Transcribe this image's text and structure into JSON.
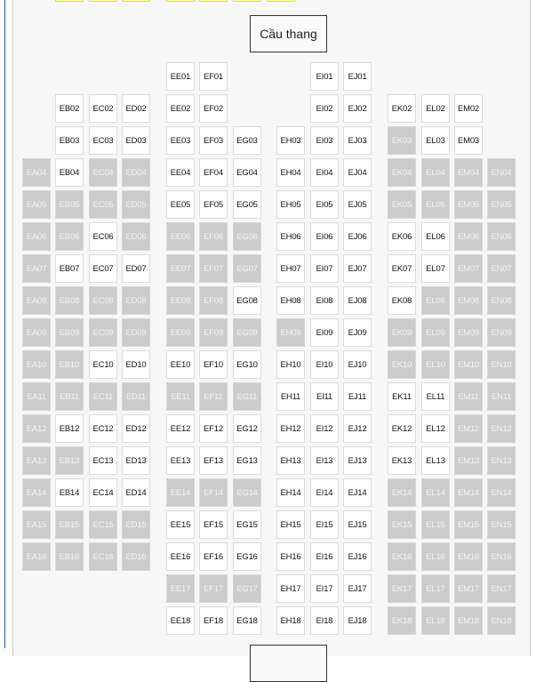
{
  "stair_label": "Cầu thang",
  "colors": {
    "available": "#ffffff",
    "sold": "#cccccc",
    "selected": "#ffff99",
    "accent": "#2a5ea8"
  },
  "status_key": {
    "a": "available",
    "s": "sold"
  },
  "rows": [
    {
      "EE01": "a",
      "EF01": "a",
      "EI01": "a",
      "EJ01": "a"
    },
    {
      "EB02": "a",
      "EC02": "a",
      "ED02": "a",
      "EE02": "a",
      "EF02": "a",
      "EI02": "a",
      "EJ02": "a",
      "EK02": "a",
      "EL02": "a",
      "EM02": "a"
    },
    {
      "EB03": "a",
      "EC03": "a",
      "ED03": "a",
      "EE03": "a",
      "EF03": "a",
      "EG03": "a",
      "EH03": "a",
      "EI03": "a",
      "EJ03": "a",
      "EK03": "s",
      "EL03": "a",
      "EM03": "a"
    },
    {
      "EA04": "s",
      "EB04": "a",
      "EC04": "s",
      "ED04": "s",
      "EE04": "a",
      "EF04": "a",
      "EG04": "a",
      "EH04": "a",
      "EI04": "a",
      "EJ04": "a",
      "EK04": "s",
      "EL04": "s",
      "EM04": "s",
      "EN04": "s"
    },
    {
      "EA05": "s",
      "EB05": "s",
      "EC05": "s",
      "ED05": "s",
      "EE05": "a",
      "EF05": "a",
      "EG05": "a",
      "EH05": "a",
      "EI05": "a",
      "EJ05": "a",
      "EK05": "s",
      "EL05": "s",
      "EM05": "s",
      "EN05": "s"
    },
    {
      "EA06": "s",
      "EB06": "s",
      "EC06": "a",
      "ED06": "s",
      "EE06": "s",
      "EF06": "s",
      "EG06": "s",
      "EH06": "a",
      "EI06": "a",
      "EJ06": "a",
      "EK06": "a",
      "EL06": "a",
      "EM06": "s",
      "EN06": "s"
    },
    {
      "EA07": "s",
      "EB07": "a",
      "EC07": "a",
      "ED07": "a",
      "EE07": "s",
      "EF07": "s",
      "EG07": "s",
      "EH07": "a",
      "EI07": "a",
      "EJ07": "a",
      "EK07": "a",
      "EL07": "a",
      "EM07": "s",
      "EN07": "s"
    },
    {
      "EA08": "s",
      "EB08": "s",
      "EC08": "s",
      "ED08": "s",
      "EE08": "s",
      "EF08": "s",
      "EG08": "a",
      "EH08": "a",
      "EI08": "a",
      "EJ08": "a",
      "EK08": "a",
      "EL08": "s",
      "EM08": "s",
      "EN08": "s"
    },
    {
      "EA09": "s",
      "EB09": "s",
      "EC09": "s",
      "ED09": "s",
      "EE09": "s",
      "EF09": "s",
      "EG09": "s",
      "EH09": "s",
      "EI09": "a",
      "EJ09": "a",
      "EK09": "s",
      "EL09": "s",
      "EM09": "s",
      "EN09": "s"
    },
    {
      "EA10": "s",
      "EB10": "s",
      "EC10": "a",
      "ED10": "a",
      "EE10": "a",
      "EF10": "a",
      "EG10": "a",
      "EH10": "a",
      "EI10": "a",
      "EJ10": "a",
      "EK10": "s",
      "EL10": "s",
      "EM10": "s",
      "EN10": "s"
    },
    {
      "EA11": "s",
      "EB11": "s",
      "EC11": "s",
      "ED11": "s",
      "EE11": "s",
      "EF11": "s",
      "EG11": "s",
      "EH11": "a",
      "EI11": "a",
      "EJ11": "a",
      "EK11": "a",
      "EL11": "a",
      "EM11": "s",
      "EN11": "s"
    },
    {
      "EA12": "s",
      "EB12": "a",
      "EC12": "a",
      "ED12": "a",
      "EE12": "a",
      "EF12": "a",
      "EG12": "a",
      "EH12": "a",
      "EI12": "a",
      "EJ12": "a",
      "EK12": "a",
      "EL12": "a",
      "EM12": "s",
      "EN12": "s"
    },
    {
      "EA13": "s",
      "EB13": "s",
      "EC13": "a",
      "ED13": "a",
      "EE13": "a",
      "EF13": "a",
      "EG13": "a",
      "EH13": "a",
      "EI13": "a",
      "EJ13": "a",
      "EK13": "a",
      "EL13": "a",
      "EM13": "s",
      "EN13": "s"
    },
    {
      "EA14": "s",
      "EB14": "a",
      "EC14": "a",
      "ED14": "a",
      "EE14": "s",
      "EF14": "s",
      "EG14": "s",
      "EH14": "a",
      "EI14": "a",
      "EJ14": "a",
      "EK14": "s",
      "EL14": "s",
      "EM14": "s",
      "EN14": "s"
    },
    {
      "EA15": "s",
      "EB15": "s",
      "EC15": "s",
      "ED15": "s",
      "EE15": "a",
      "EF15": "a",
      "EG15": "a",
      "EH15": "a",
      "EI15": "a",
      "EJ15": "a",
      "EK15": "s",
      "EL15": "s",
      "EM15": "s",
      "EN15": "s"
    },
    {
      "EA16": "s",
      "EB16": "s",
      "EC16": "s",
      "ED16": "s",
      "EE16": "a",
      "EF16": "a",
      "EG16": "a",
      "EH16": "a",
      "EI16": "a",
      "EJ16": "a",
      "EK16": "s",
      "EL16": "s",
      "EM16": "s",
      "EN16": "s"
    },
    {
      "EE17": "s",
      "EF17": "s",
      "EG17": "s",
      "EH17": "a",
      "EI17": "a",
      "EJ17": "a",
      "EK17": "s",
      "EL17": "s",
      "EM17": "s",
      "EN17": "s"
    },
    {
      "EE18": "a",
      "EF18": "a",
      "EG18": "a",
      "EH18": "a",
      "EI18": "a",
      "EJ18": "a",
      "EK18": "s",
      "EL18": "s",
      "EM18": "s",
      "EN18": "s"
    }
  ]
}
